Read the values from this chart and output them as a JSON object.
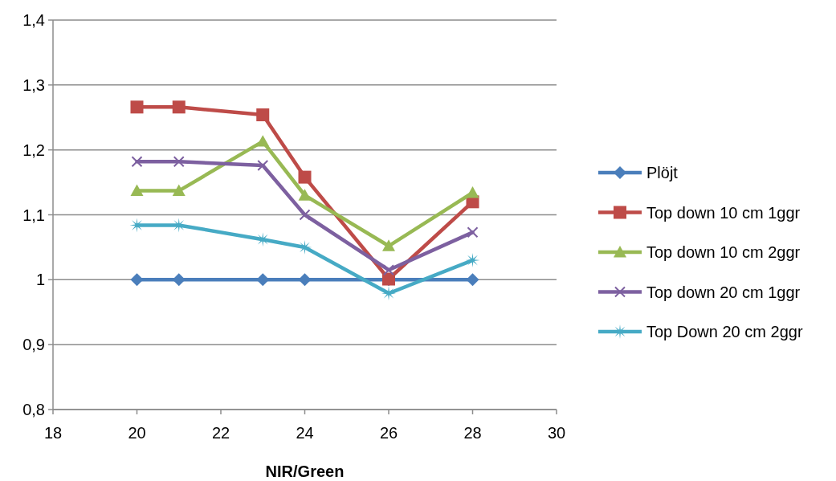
{
  "chart_data": {
    "type": "line",
    "xlabel": "NIR/Green",
    "x": [
      20,
      21,
      23,
      24,
      26,
      28
    ],
    "series": [
      {
        "name": "Plöjt",
        "color": "#4a7ebb",
        "marker": "diamond",
        "values": [
          1,
          1,
          1,
          1,
          1,
          1
        ]
      },
      {
        "name": "Top down 10 cm 1ggr",
        "color": "#be4b48",
        "marker": "square",
        "values": [
          1.266,
          1.266,
          1.254,
          1.158,
          1.001,
          1.12
        ]
      },
      {
        "name": "Top down 10 cm 2ggr",
        "color": "#98b954",
        "marker": "triangle",
        "values": [
          1.137,
          1.137,
          1.213,
          1.13,
          1.052,
          1.134
        ]
      },
      {
        "name": "Top down 20 cm 1ggr",
        "color": "#7d60a0",
        "marker": "cross",
        "values": [
          1.182,
          1.182,
          1.176,
          1.1,
          1.015,
          1.073
        ]
      },
      {
        "name": "Top Down 20 cm 2ggr",
        "color": "#46aac5",
        "marker": "star",
        "values": [
          1.084,
          1.084,
          1.062,
          1.05,
          0.979,
          1.03
        ]
      }
    ],
    "xlim": [
      18,
      30
    ],
    "xticks": [
      18,
      20,
      22,
      24,
      26,
      28,
      30
    ],
    "ylim": [
      0.8,
      1.4
    ],
    "yticks": [
      {
        "value": 0.8,
        "label": "0,8"
      },
      {
        "value": 0.9,
        "label": "0,9"
      },
      {
        "value": 1,
        "label": "1"
      },
      {
        "value": 1.1,
        "label": "1,1"
      },
      {
        "value": 1.2,
        "label": "1,2"
      },
      {
        "value": 1.3,
        "label": "1,3"
      },
      {
        "value": 1.4,
        "label": "1,4"
      }
    ],
    "grid": "y",
    "legend": "right",
    "line_style": "solid"
  }
}
